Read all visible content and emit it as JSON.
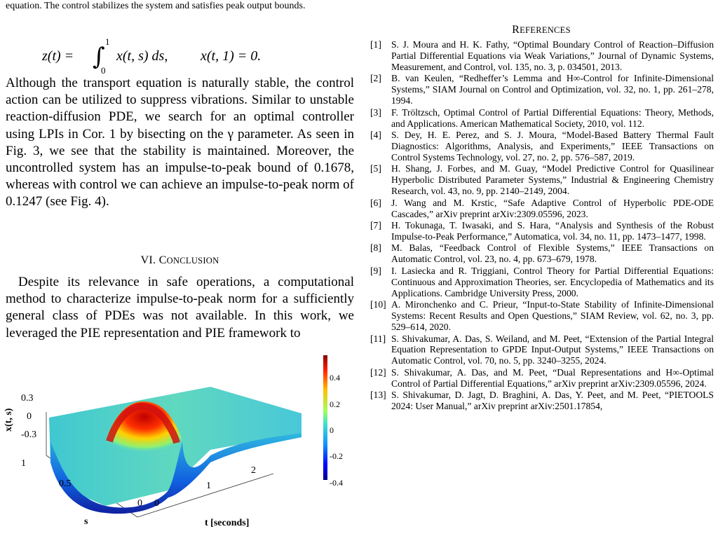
{
  "left_column": {
    "caption_top": "equation. The control stabilizes the system and satisfies peak output bounds.",
    "equation": {
      "lhs": "z(t) =",
      "upper_limit": "1",
      "lower_limit": "0",
      "integrand": "x(t, s) ds,",
      "condition": "x(t, 1) = 0."
    },
    "paragraph1": "Although the transport equation is naturally stable, the control action can be utilized to suppress vibrations. Similar to unstable reaction-diffusion PDE, we search for an optimal controller using LPIs in Cor. 1 by bisecting on the γ parameter. As seen in Fig. 3, we see that the stability is maintained. Moreover, the uncontrolled system has an impulse-to-peak bound of 0.1678, whereas with control we can achieve an impulse-to-peak norm of 0.1247 (see Fig. 4).",
    "section_heading": {
      "number": "VI.",
      "initial": "C",
      "rest": "ONCLUSION"
    },
    "paragraph2": "Despite its relevance in safe operations, a computational method to characterize impulse-to-peak norm for a sufficiently general class of PDEs was not available. In this work, we leveraged the PIE representation and PIE framework to",
    "figure": {
      "zlabel": "x(t, s)",
      "slabel": "s",
      "tlabel": "t [seconds]",
      "z_ticks": [
        "0.3",
        "0",
        "-0.3"
      ],
      "s_ticks": [
        "1",
        "0.5",
        "0"
      ],
      "t_ticks": [
        "0",
        "1",
        "2"
      ],
      "colorbar_ticks": [
        "0.4",
        "0.2",
        "0",
        "-0.2",
        "-0.4"
      ]
    }
  },
  "right_column": {
    "refs_heading": {
      "initial": "R",
      "rest": "EFERENCES"
    },
    "references": [
      {
        "num": "[1]",
        "text": "S. J. Moura and H. K. Fathy, “Optimal Boundary Control of Reaction–Diffusion Partial Differential Equations via Weak Variations,” Journal of Dynamic Systems, Measurement, and Control, vol. 135, no. 3, p. 034501, 2013."
      },
      {
        "num": "[2]",
        "text": "B. van Keulen, “Redheffer’s Lemma and H∞-Control for Infinite-Dimensional Systems,” SIAM Journal on Control and Optimization, vol. 32, no. 1, pp. 261–278, 1994."
      },
      {
        "num": "[3]",
        "text": "F. Tröltzsch, Optimal Control of Partial Differential Equations: Theory, Methods, and Applications. American Mathematical Society, 2010, vol. 112."
      },
      {
        "num": "[4]",
        "text": "S. Dey, H. E. Perez, and S. J. Moura, “Model-Based Battery Thermal Fault Diagnostics: Algorithms, Analysis, and Experiments,” IEEE Transactions on Control Systems Technology, vol. 27, no. 2, pp. 576–587, 2019."
      },
      {
        "num": "[5]",
        "text": "H. Shang, J. Forbes, and M. Guay, “Model Predictive Control for Quasilinear Hyperbolic Distributed Parameter Systems,” Industrial & Engineering Chemistry Research, vol. 43, no. 9, pp. 2140–2149, 2004."
      },
      {
        "num": "[6]",
        "text": "J. Wang and M. Krstic, “Safe Adaptive Control of Hyperbolic PDE-ODE Cascades,” arXiv preprint arXiv:2309.05596, 2023."
      },
      {
        "num": "[7]",
        "text": "H. Tokunaga, T. Iwasaki, and S. Hara, “Analysis and Synthesis of the Robust Impulse-to-Peak Performance,” Automatica, vol. 34, no. 11, pp. 1473–1477, 1998."
      },
      {
        "num": "[8]",
        "text": "M. Balas, “Feedback Control of Flexible Systems,” IEEE Transactions on Automatic Control, vol. 23, no. 4, pp. 673–679, 1978."
      },
      {
        "num": "[9]",
        "text": "I. Lasiecka and R. Triggiani, Control Theory for Partial Differential Equations: Continuous and Approximation Theories, ser. Encyclopedia of Mathematics and its Applications. Cambridge University Press, 2000."
      },
      {
        "num": "[10]",
        "text": "A. Mironchenko and C. Prieur, “Input-to-State Stability of Infinite-Dimensional Systems: Recent Results and Open Questions,” SIAM Review, vol. 62, no. 3, pp. 529–614, 2020."
      },
      {
        "num": "[11]",
        "text": "S. Shivakumar, A. Das, S. Weiland, and M. Peet, “Extension of the Partial Integral Equation Representation to GPDE Input-Output Systems,” IEEE Transactions on Automatic Control, vol. 70, no. 5, pp. 3240–3255, 2024."
      },
      {
        "num": "[12]",
        "text": "S. Shivakumar, A. Das, and M. Peet, “Dual Representations and H∞-Optimal Control of Partial Differential Equations,” arXiv preprint arXiv:2309.05596, 2024."
      },
      {
        "num": "[13]",
        "text": "S. Shivakumar, D. Jagt, D. Braghini, A. Das, Y. Peet, and M. Peet, “PIETOOLS 2024: User Manual,” arXiv preprint arXiv:2501.17854,"
      }
    ]
  },
  "colors": {
    "surface_peak": "#cc1010",
    "surface_mid": "#30c0c0",
    "surface_low": "#1020a0"
  }
}
